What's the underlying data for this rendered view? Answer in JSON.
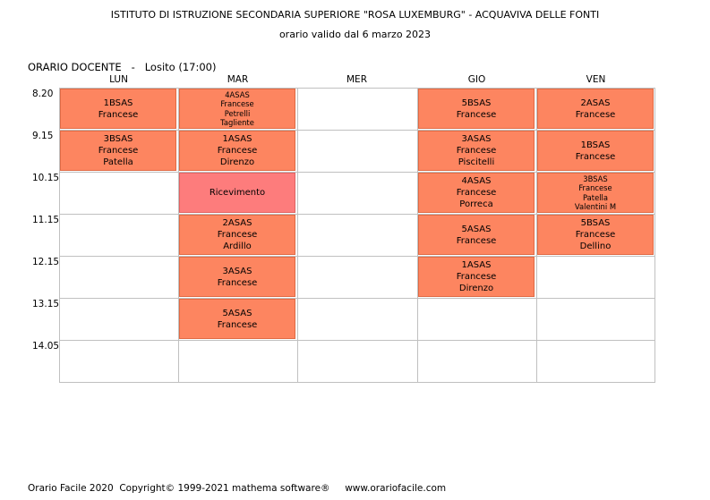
{
  "header": {
    "title": "ISTITUTO DI ISTRUZIONE SECONDARIA SUPERIORE \"ROSA LUXEMBURG\" - ACQUAVIVA DELLE FONTI",
    "subtitle": "orario valido dal 6 marzo 2023",
    "timetable_label": "ORARIO DOCENTE   -   Losito (17:00)"
  },
  "days": [
    "LUN",
    "MAR",
    "MER",
    "GIO",
    "VEN"
  ],
  "times": [
    "8.20",
    "9.15",
    "10.15",
    "11.15",
    "12.15",
    "13.15",
    "14.05"
  ],
  "colors": {
    "lesson": "#fd8560",
    "reception": "#fd7c7c",
    "grid": "#c0c0c0"
  },
  "lessons": [
    {
      "day": 0,
      "slot": 0,
      "lines": [
        "1BSAS",
        "Francese"
      ]
    },
    {
      "day": 0,
      "slot": 1,
      "lines": [
        "3BSAS",
        "Francese",
        "Patella"
      ]
    },
    {
      "day": 1,
      "slot": 0,
      "lines": [
        "4ASAS",
        "Francese",
        "Petrelli",
        "Tagliente"
      ]
    },
    {
      "day": 1,
      "slot": 1,
      "lines": [
        "1ASAS",
        "Francese",
        "Direnzo"
      ]
    },
    {
      "day": 1,
      "slot": 2,
      "lines": [
        "Ricevimento"
      ],
      "kind": "reception"
    },
    {
      "day": 1,
      "slot": 3,
      "lines": [
        "2ASAS",
        "Francese",
        "Ardillo"
      ]
    },
    {
      "day": 1,
      "slot": 4,
      "lines": [
        "3ASAS",
        "Francese"
      ]
    },
    {
      "day": 1,
      "slot": 5,
      "lines": [
        "5ASAS",
        "Francese"
      ]
    },
    {
      "day": 3,
      "slot": 0,
      "lines": [
        "5BSAS",
        "Francese"
      ]
    },
    {
      "day": 3,
      "slot": 1,
      "lines": [
        "3ASAS",
        "Francese",
        "Piscitelli"
      ]
    },
    {
      "day": 3,
      "slot": 2,
      "lines": [
        "4ASAS",
        "Francese",
        "Porreca"
      ]
    },
    {
      "day": 3,
      "slot": 3,
      "lines": [
        "5ASAS",
        "Francese"
      ]
    },
    {
      "day": 3,
      "slot": 4,
      "lines": [
        "1ASAS",
        "Francese",
        "Direnzo"
      ]
    },
    {
      "day": 4,
      "slot": 0,
      "lines": [
        "2ASAS",
        "Francese"
      ]
    },
    {
      "day": 4,
      "slot": 1,
      "lines": [
        "1BSAS",
        "Francese"
      ]
    },
    {
      "day": 4,
      "slot": 2,
      "lines": [
        "3BSAS",
        "Francese",
        "Patella",
        "Valentini M"
      ]
    },
    {
      "day": 4,
      "slot": 3,
      "lines": [
        "5BSAS",
        "Francese",
        "Dellino"
      ]
    }
  ],
  "footer": "Orario Facile 2020  Copyright© 1999-2021 mathema software®     www.orariofacile.com"
}
